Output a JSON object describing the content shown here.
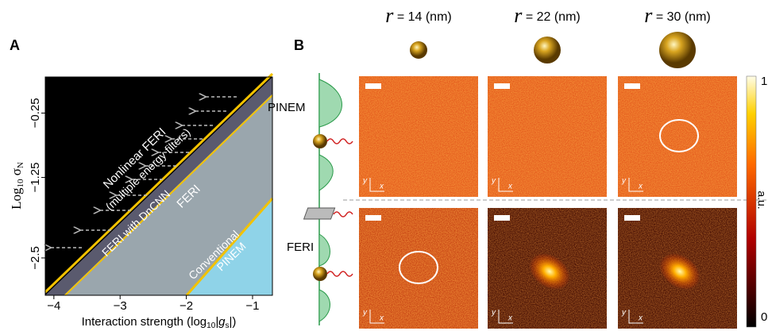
{
  "panel_a": {
    "label": "A",
    "x_label": {
      "main": "Interaction strength (log",
      "sub": "10",
      "mid": "|g",
      "sub2": "s",
      "end": "|)"
    },
    "y_label": {
      "main": "Log",
      "sub": "10",
      "mid": " σ",
      "sub2": "N"
    },
    "xlim": [
      -4.13,
      -0.7
    ],
    "ylim": [
      -3.08,
      0.31
    ],
    "xticks": [
      {
        "value": -4,
        "label": "−4"
      },
      {
        "value": -3,
        "label": "−3"
      },
      {
        "value": -2,
        "label": "−2"
      },
      {
        "value": -1,
        "label": "−1"
      }
    ],
    "yticks": [
      {
        "value": -0.25,
        "label": "−0.25"
      },
      {
        "value": -1.25,
        "label": "−1.25"
      },
      {
        "value": -2.5,
        "label": "−2.5"
      }
    ],
    "regions": {
      "nonlinear": "Nonlinear FERI",
      "nonlinear_note": "(multiple energy filters)",
      "dncnn": "FERI with DnCNN",
      "feri": "FERI",
      "conventional": "Conventional",
      "conventional_2": "PINEM"
    }
  },
  "panel_b": {
    "label": "B",
    "columns": [
      {
        "symbol": "r",
        "text": " = 14 (nm)"
      },
      {
        "symbol": "r",
        "text": " = 22 (nm)"
      },
      {
        "symbol": "r",
        "text": " = 30 (nm)"
      }
    ],
    "rows": [
      "PINEM",
      "FERI"
    ],
    "axis_glyphs": {
      "x": "x",
      "y": "y"
    },
    "colorbar": {
      "max": "1",
      "min": "0",
      "unit": "a.u."
    }
  }
}
